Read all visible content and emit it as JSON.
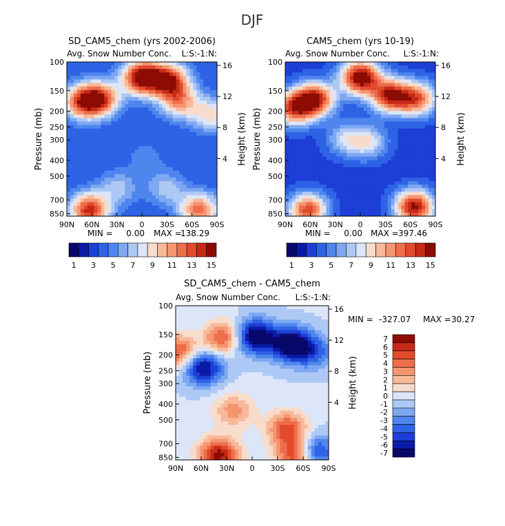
{
  "figure_title": "DJF",
  "chart_data": [
    {
      "type": "heatmap",
      "title": "SD_CAM5_chem (yrs 2002-2006)",
      "subtitle": "Avg. Snow Number Conc.",
      "units_label": "L:S:-1:N:",
      "ylabel": "Pressure (mb)",
      "ylabel_right": "Height (km)",
      "x_ticks": [
        "90N",
        "60N",
        "30N",
        "0",
        "30S",
        "60S",
        "90S"
      ],
      "y_ticks": [
        "100",
        "150",
        "200",
        "250",
        "300",
        "400",
        "500",
        "700",
        "850"
      ],
      "right_ticks": [
        "16",
        "12",
        "8",
        "4"
      ],
      "stats": {
        "min_label": "MIN =",
        "min": "0.00",
        "max_label": "MAX =",
        "max": "138.29"
      },
      "colorbar_levels": [
        1,
        2,
        3,
        4,
        5,
        6,
        7,
        8,
        9,
        10,
        11,
        12,
        13,
        14,
        15
      ],
      "colorbar_labels": [
        "1",
        "3",
        "5",
        "7",
        "9",
        "11",
        "13",
        "15"
      ],
      "features": [
        {
          "x": 0.1,
          "y": 0.26,
          "v": 12
        },
        {
          "x": 0.22,
          "y": 0.24,
          "v": 13
        },
        {
          "x": 0.5,
          "y": 0.1,
          "v": 16
        },
        {
          "x": 0.68,
          "y": 0.12,
          "v": 14
        },
        {
          "x": 0.75,
          "y": 0.26,
          "v": 10
        },
        {
          "x": 0.96,
          "y": 0.34,
          "v": 9
        },
        {
          "x": 0.52,
          "y": 0.62,
          "v": 5
        },
        {
          "x": 0.34,
          "y": 0.82,
          "v": 7
        },
        {
          "x": 0.66,
          "y": 0.82,
          "v": 7
        },
        {
          "x": 0.15,
          "y": 0.96,
          "v": 14
        },
        {
          "x": 0.88,
          "y": 0.96,
          "v": 12
        }
      ]
    },
    {
      "type": "heatmap",
      "title": "CAM5_chem (yrs 10-19)",
      "subtitle": "Avg. Snow Number Conc.",
      "units_label": "L:S:-1:N:",
      "ylabel": "Pressure (mb)",
      "ylabel_right": "Height (km)",
      "x_ticks": [
        "90N",
        "60N",
        "30N",
        "0",
        "30S",
        "60S",
        "90S"
      ],
      "y_ticks": [
        "100",
        "150",
        "200",
        "250",
        "300",
        "400",
        "500",
        "700",
        "850"
      ],
      "right_ticks": [
        "16",
        "12",
        "8",
        "4"
      ],
      "stats": {
        "min_label": "MIN =",
        "min": "0.00",
        "max_label": "MAX =",
        "max": "397.46"
      },
      "colorbar_levels": [
        1,
        2,
        3,
        4,
        5,
        6,
        7,
        8,
        9,
        10,
        11,
        12,
        13,
        14,
        15
      ],
      "colorbar_labels": [
        "1",
        "3",
        "5",
        "7",
        "9",
        "11",
        "13",
        "15"
      ],
      "features": [
        {
          "x": 0.06,
          "y": 0.3,
          "v": 13
        },
        {
          "x": 0.2,
          "y": 0.24,
          "v": 14
        },
        {
          "x": 0.5,
          "y": 0.1,
          "v": 16
        },
        {
          "x": 0.7,
          "y": 0.22,
          "v": 14
        },
        {
          "x": 0.88,
          "y": 0.24,
          "v": 12
        },
        {
          "x": 0.4,
          "y": 0.5,
          "v": 7
        },
        {
          "x": 0.55,
          "y": 0.52,
          "v": 8
        },
        {
          "x": 0.15,
          "y": 0.96,
          "v": 13
        },
        {
          "x": 0.86,
          "y": 0.94,
          "v": 15
        }
      ]
    },
    {
      "type": "heatmap",
      "title": "SD_CAM5_chem - CAM5_chem",
      "subtitle": "Avg. Snow Number Conc.",
      "units_label": "L:S:-1:N:",
      "ylabel": "Pressure (mb)",
      "ylabel_right": "Height (km)",
      "x_ticks": [
        "90N",
        "60N",
        "30N",
        "0",
        "30S",
        "60S",
        "90S"
      ],
      "y_ticks": [
        "100",
        "150",
        "200",
        "250",
        "300",
        "400",
        "500",
        "700",
        "850"
      ],
      "right_ticks": [
        "16",
        "12",
        "8",
        "4"
      ],
      "stats": {
        "min_label": "MIN =",
        "min": "-327.07",
        "max_label": "MAX =",
        "max": "30.27"
      },
      "colorbar_levels": [
        7,
        6,
        5,
        4,
        3,
        2,
        1,
        0,
        -1,
        -2,
        -3,
        -4,
        -5,
        -6,
        -7
      ],
      "colorbar_labels": [
        "7",
        "6",
        "5",
        "4",
        "3",
        "2",
        "1",
        "0",
        "-1",
        "-2",
        "-3",
        "-4",
        "-5",
        "-6",
        "-7"
      ],
      "features": [
        {
          "x": 0.02,
          "y": 0.3,
          "v": 5
        },
        {
          "x": 0.18,
          "y": 0.4,
          "v": -7
        },
        {
          "x": 0.25,
          "y": 0.18,
          "v": -3
        },
        {
          "x": 0.29,
          "y": 0.2,
          "v": 7
        },
        {
          "x": 0.52,
          "y": 0.2,
          "v": -8
        },
        {
          "x": 0.75,
          "y": 0.25,
          "v": -8
        },
        {
          "x": 0.9,
          "y": 0.3,
          "v": -4
        },
        {
          "x": 0.38,
          "y": 0.68,
          "v": 3
        },
        {
          "x": 0.73,
          "y": 0.8,
          "v": 5
        },
        {
          "x": 0.28,
          "y": 0.97,
          "v": 7
        },
        {
          "x": 0.8,
          "y": 0.97,
          "v": 7
        },
        {
          "x": 0.9,
          "y": 0.95,
          "v": -7
        }
      ]
    }
  ]
}
